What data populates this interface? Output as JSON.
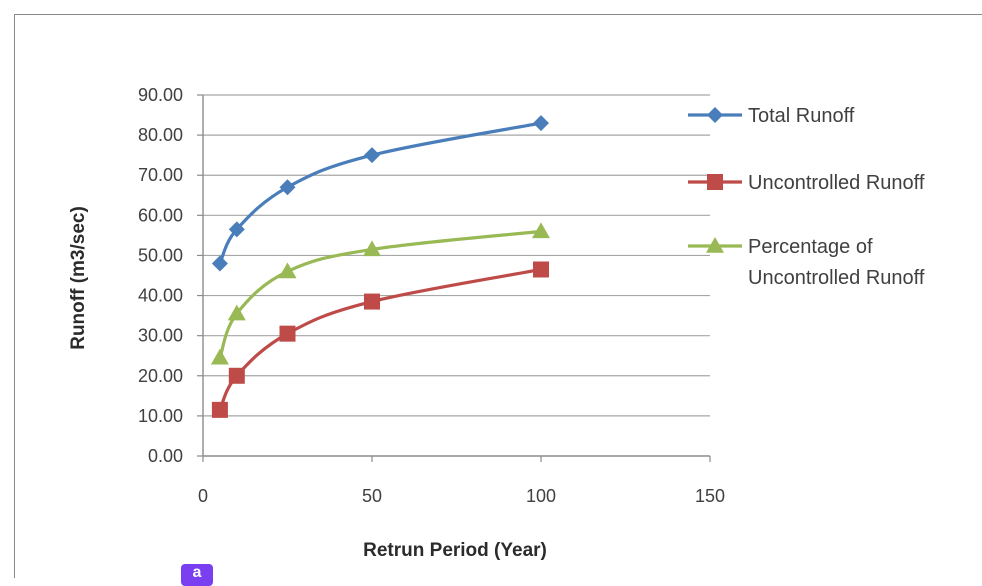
{
  "chart_data": {
    "type": "line",
    "title": "",
    "xlabel": "Retrun Period (Year)",
    "ylabel": "Runoff  (m3/sec)",
    "xlim": [
      0,
      150
    ],
    "ylim": [
      0,
      90
    ],
    "x_ticks": [
      0,
      50,
      100,
      150
    ],
    "x_tick_labels": [
      "0",
      "50",
      "100",
      "150"
    ],
    "y_ticks": [
      0,
      10,
      20,
      30,
      40,
      50,
      60,
      70,
      80,
      90
    ],
    "y_tick_labels": [
      "0.00",
      "10.00",
      "20.00",
      "30.00",
      "40.00",
      "50.00",
      "60.00",
      "70.00",
      "80.00",
      "90.00"
    ],
    "grid": "horizontal",
    "legend_position": "right",
    "series": [
      {
        "name": "Total Runoff",
        "legend_lines": [
          "Total Runoff"
        ],
        "color": "#4a7ebb",
        "marker": "diamond",
        "x": [
          5,
          10,
          25,
          50,
          100
        ],
        "y": [
          48,
          56.5,
          67,
          75,
          83
        ]
      },
      {
        "name": "Uncontrolled Runoff",
        "legend_lines": [
          "Uncontrolled Runoff"
        ],
        "color": "#be4b48",
        "marker": "square",
        "x": [
          5,
          10,
          25,
          50,
          100
        ],
        "y": [
          11.5,
          20,
          30.5,
          38.5,
          46.5
        ]
      },
      {
        "name": "Percentage of Uncontrolled Runoff",
        "legend_lines": [
          "Percentage of",
          "Uncontrolled Runoff"
        ],
        "color": "#98b954",
        "marker": "triangle",
        "x": [
          5,
          10,
          25,
          50,
          100
        ],
        "y": [
          24.5,
          35.5,
          46,
          51.5,
          56
        ]
      }
    ]
  },
  "panel_label": "a"
}
